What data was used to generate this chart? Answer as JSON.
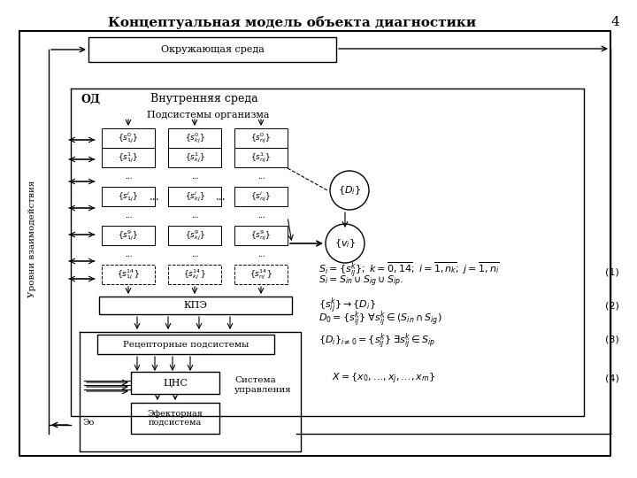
{
  "title": "Концептуальная модель объекта диагностики",
  "page_num": "4",
  "bg_color": "#ffffff",
  "outer_env_label": "Окружающая среда",
  "inner_env_label": "Внутренняя среда",
  "od_label": "ОД",
  "subsystems_label": "Подсистемы организма",
  "kpo_label": "КПЭ",
  "receptor_label": "Рецепторные подсистемы",
  "cnc_label": "ЦНС",
  "effector_label": "Эфекторная\nподсистема",
  "system_label": "Система\nуправления",
  "di_label": "{Dᵢ}",
  "vi_label": "{vᵢ}",
  "levels_label": "Уровни взаимодействия",
  "col1_rows": [
    "{s⁰₁ⱼ}",
    "{s¹₁ⱼ}",
    "...",
    "{sʲ₁ⱼ}",
    "...",
    "{s⁹₁ⱼ}",
    "...",
    "{s¹⁴₁ⱼ}"
  ],
  "col2_rows": [
    "{s⁰ₖⱼ}",
    "{s¹ₖⱼ}",
    "...",
    "{sʲₖⱼ}",
    "...",
    "{s⁹ₖⱼ}",
    "...",
    "{s¹⁴ₖⱼ}"
  ],
  "col3_rows": [
    "{s⁰ₙⱼ}",
    "{s¹ₙⱼ}",
    "...",
    "{sʲₙⱼ}",
    "...",
    "{s⁹ₙⱼ}",
    "...",
    "{s¹⁴ₙⱼ}"
  ],
  "eq1_line1": "$S_i = \\{s_{ij}^k\\};\\; k = \\overline{0,14};\\; i = \\overline{1,n_k};\\; j = \\overline{1,n_i}$",
  "eq1_line2": "$S_i = S_{in} \\cup S_{ig} \\cup S_{ip}.$",
  "eq2_line1": "$\\{s_{ij}^k\\} \\rightarrow \\{D_i\\}$",
  "eq2_line2": "$D_0 = \\{s_{ij}^k\\}\\; \\forall s_{ij}^k \\in (S_{in} \\cap S_{ig})$",
  "eq3_line1": "$\\{D_i\\}_{i \\neq 0} = \\{s_{ij}^k\\}\\; \\exists s_{ij}^k \\in S_{ip}$",
  "eq4_line1": "$X = \\{x_0, \\ldots, x_j, \\ldots, x_m\\}$",
  "label_num1": "(1)",
  "label_num2": "(2)",
  "label_num3": "(3)",
  "label_num4": "(4)"
}
